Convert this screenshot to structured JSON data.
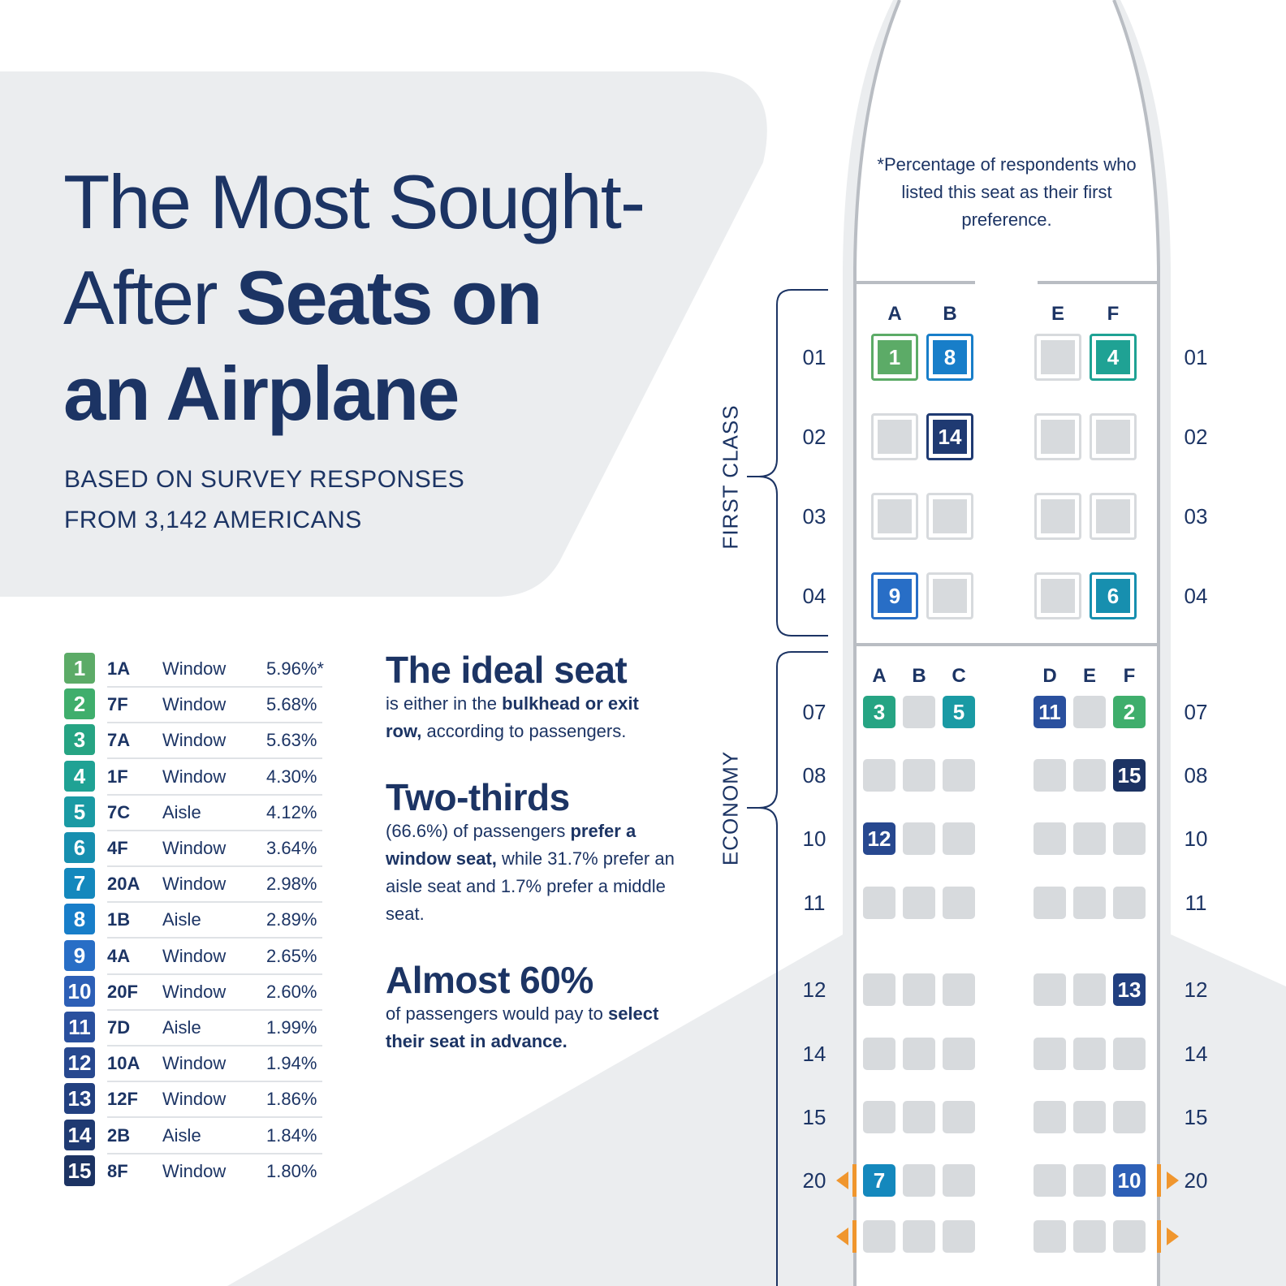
{
  "title": {
    "line1": "The Most Sought-",
    "line2_light": "After ",
    "line2_bold": "Seats on",
    "line3": "an Airplane"
  },
  "subtitle": {
    "line1": "BASED ON SURVEY RESPONSES",
    "line2": "FROM 3,142 AMERICANS"
  },
  "colors": {
    "navy": "#1c3464",
    "seat_empty": "#d7dadd",
    "exit": "#f0962e",
    "background_shape": "#ebedef"
  },
  "ranking": [
    {
      "rank": "1",
      "seat": "1A",
      "type": "Window",
      "pct": "5.96%*",
      "color": "#5cab67"
    },
    {
      "rank": "2",
      "seat": "7F",
      "type": "Window",
      "pct": "5.68%",
      "color": "#3fae6c"
    },
    {
      "rank": "3",
      "seat": "7A",
      "type": "Window",
      "pct": "5.63%",
      "color": "#26a483"
    },
    {
      "rank": "4",
      "seat": "1F",
      "type": "Window",
      "pct": "4.30%",
      "color": "#1fa294"
    },
    {
      "rank": "5",
      "seat": "7C",
      "type": "Aisle",
      "pct": "4.12%",
      "color": "#1a9aa4"
    },
    {
      "rank": "6",
      "seat": "4F",
      "type": "Window",
      "pct": "3.64%",
      "color": "#178faf"
    },
    {
      "rank": "7",
      "seat": "20A",
      "type": "Window",
      "pct": "2.98%",
      "color": "#1488bd"
    },
    {
      "rank": "8",
      "seat": "1B",
      "type": "Aisle",
      "pct": "2.89%",
      "color": "#187ec9"
    },
    {
      "rank": "9",
      "seat": "4A",
      "type": "Window",
      "pct": "2.65%",
      "color": "#286ec6"
    },
    {
      "rank": "10",
      "seat": "20F",
      "type": "Window",
      "pct": "2.60%",
      "color": "#2d5fb6"
    },
    {
      "rank": "11",
      "seat": "7D",
      "type": "Aisle",
      "pct": "1.99%",
      "color": "#2a509e"
    },
    {
      "rank": "12",
      "seat": "10A",
      "type": "Window",
      "pct": "1.94%",
      "color": "#27488f"
    },
    {
      "rank": "13",
      "seat": "12F",
      "type": "Window",
      "pct": "1.86%",
      "color": "#224080"
    },
    {
      "rank": "14",
      "seat": "2B",
      "type": "Aisle",
      "pct": "1.84%",
      "color": "#1f3a72"
    },
    {
      "rank": "15",
      "seat": "8F",
      "type": "Window",
      "pct": "1.80%",
      "color": "#1c3363"
    }
  ],
  "stats": [
    {
      "heading": "The ideal seat",
      "parts": [
        [
          "is either in the ",
          0
        ],
        [
          "bulkhead or exit row,",
          1
        ],
        [
          " according to passengers.",
          0
        ]
      ]
    },
    {
      "heading": "Two-thirds",
      "parts": [
        [
          "(66.6%) of passengers ",
          0
        ],
        [
          "prefer a window seat,",
          1
        ],
        [
          " while 31.7% prefer an aisle seat and 1.7% prefer a middle seat.",
          0
        ]
      ]
    },
    {
      "heading": "Almost 60%",
      "parts": [
        [
          "of passengers would pay to ",
          0
        ],
        [
          "select their seat in advance.",
          1
        ]
      ]
    }
  ],
  "footnote": "*Percentage of respondents who listed this seat as their first preference.",
  "first_class": {
    "label": "FIRST CLASS",
    "columns": [
      "A",
      "B",
      "E",
      "F"
    ],
    "rows": [
      "01",
      "02",
      "03",
      "04"
    ],
    "seats": [
      [
        "1",
        "8",
        "",
        "4"
      ],
      [
        "",
        "14",
        "",
        ""
      ],
      [
        "",
        "",
        "",
        ""
      ],
      [
        "9",
        "",
        "",
        "6"
      ]
    ]
  },
  "economy": {
    "label": "ECONOMY",
    "columns": [
      "A",
      "B",
      "C",
      "D",
      "E",
      "F"
    ],
    "rows": [
      "07",
      "08",
      "10",
      "11",
      "12",
      "14",
      "15",
      "20",
      ""
    ],
    "seats": [
      [
        "3",
        "",
        "5",
        "11",
        "",
        "2"
      ],
      [
        "",
        "",
        "",
        "",
        "",
        "15"
      ],
      [
        "12",
        "",
        "",
        "",
        "",
        ""
      ],
      [
        "",
        "",
        "",
        "",
        "",
        ""
      ],
      [
        "",
        "",
        "",
        "",
        "",
        "13"
      ],
      [
        "",
        "",
        "",
        "",
        "",
        ""
      ],
      [
        "",
        "",
        "",
        "",
        "",
        ""
      ],
      [
        "7",
        "",
        "",
        "",
        "",
        "10"
      ],
      [
        "",
        "",
        "",
        "",
        "",
        ""
      ]
    ],
    "exit_rows": [
      "20",
      ""
    ]
  }
}
